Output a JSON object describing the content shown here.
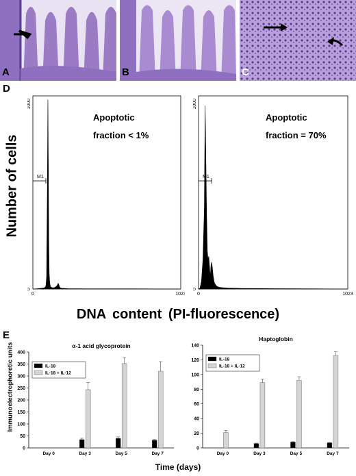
{
  "micrographs": {
    "a": {
      "letter": "A"
    },
    "b": {
      "letter": "B"
    },
    "c": {
      "letter": "C"
    }
  },
  "panel_d": {
    "letter": "D",
    "ylabel": "Number of cells",
    "xlabel": "DNA content (PI-fluorescence)",
    "gate_label": "M1"
  },
  "panel_e": {
    "letter": "E",
    "xlabel": "Time (days)",
    "ylabel": "Immunoelectrophoretic units"
  },
  "colors": {
    "histology_purple": "#9b7cc4",
    "histology_dark": "#5b3f8f",
    "bar_il18": "#000000",
    "bar_il18_il12": "#d4d4d4"
  },
  "chart_data": [
    {
      "type": "area",
      "title": "",
      "annotation_line1": "Apoptotic",
      "annotation_line2": "fraction < 1%",
      "x_ticks": [
        "0",
        "1023"
      ],
      "y_ticks": [
        "0",
        "1000"
      ],
      "xlim": [
        0,
        1023
      ],
      "ylim": [
        0,
        1000
      ],
      "gate": {
        "label": "M1",
        "x_range": [
          0,
          90
        ]
      },
      "x": [
        0,
        40,
        80,
        90,
        95,
        100,
        104,
        107,
        110,
        113,
        117,
        122,
        130,
        140,
        150,
        160,
        170,
        175,
        180,
        185,
        190,
        200,
        240,
        400,
        700,
        1023
      ],
      "y": [
        0,
        2,
        6,
        15,
        60,
        500,
        980,
        650,
        250,
        80,
        30,
        12,
        8,
        6,
        8,
        12,
        20,
        30,
        22,
        10,
        6,
        4,
        2,
        1,
        1,
        0
      ]
    },
    {
      "type": "area",
      "title": "",
      "annotation_line1": "Apoptotic",
      "annotation_line2": "fraction = 70%",
      "x_ticks": [
        "0",
        "1023"
      ],
      "y_ticks": [
        "0",
        "1000"
      ],
      "xlim": [
        0,
        1023
      ],
      "ylim": [
        0,
        1000
      ],
      "gate": {
        "label": "M1",
        "x_range": [
          0,
          90
        ]
      },
      "x": [
        0,
        10,
        20,
        30,
        40,
        45,
        50,
        55,
        60,
        65,
        70,
        75,
        80,
        85,
        90,
        95,
        100,
        105,
        110,
        120,
        130,
        150,
        200,
        300,
        500,
        800,
        1023
      ],
      "y": [
        0,
        5,
        40,
        150,
        420,
        950,
        700,
        400,
        200,
        150,
        170,
        120,
        60,
        120,
        140,
        110,
        70,
        45,
        30,
        18,
        12,
        8,
        5,
        3,
        2,
        1,
        0
      ]
    },
    {
      "type": "bar",
      "title": "α-1 acid glycoprotein",
      "categories": [
        "Day 0",
        "Day 3",
        "Day 5",
        "Day 7"
      ],
      "series": [
        {
          "name": "IL-18",
          "values": [
            0,
            35,
            40,
            32
          ],
          "errors": [
            0,
            5,
            6,
            3
          ]
        },
        {
          "name": "IL-18 + IL-12",
          "values": [
            0,
            243,
            352,
            320
          ],
          "errors": [
            0,
            30,
            25,
            40
          ]
        }
      ],
      "y_ticks": [
        0,
        50,
        100,
        150,
        200,
        250,
        300,
        350,
        400
      ],
      "ylim": [
        0,
        400
      ],
      "legend": "top-left"
    },
    {
      "type": "bar",
      "title": "Haptoglobin",
      "categories": [
        "Day 0",
        "Day 3",
        "Day 5",
        "Day 7"
      ],
      "series": [
        {
          "name": "IL-18",
          "values": [
            0,
            6,
            8,
            7
          ],
          "errors": [
            0,
            0.5,
            0.5,
            0.5
          ]
        },
        {
          "name": "IL-18 + IL-12",
          "values": [
            21,
            89,
            92,
            126
          ],
          "errors": [
            3,
            5,
            5,
            5
          ]
        }
      ],
      "y_ticks": [
        0,
        20,
        40,
        60,
        80,
        100,
        120,
        140
      ],
      "ylim": [
        0,
        140
      ],
      "legend": "top-left"
    }
  ]
}
